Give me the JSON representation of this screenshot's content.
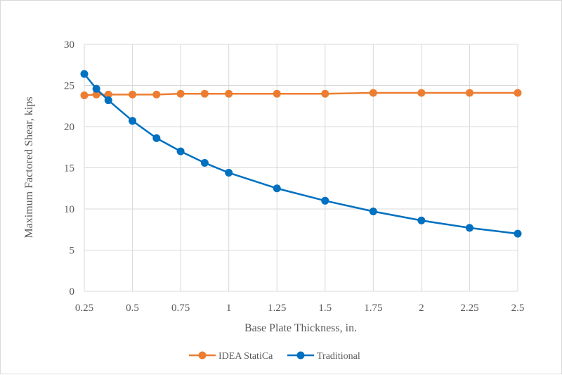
{
  "chart_data": {
    "type": "line",
    "xlabel": "Base Plate Thickness, in.",
    "ylabel": "Maximum Factored Shear, kips",
    "xlim": [
      0.25,
      2.5
    ],
    "ylim": [
      0,
      30
    ],
    "x_ticks": [
      0.25,
      0.5,
      0.75,
      1,
      1.25,
      1.5,
      1.75,
      2,
      2.25,
      2.5
    ],
    "x_tick_labels": [
      "0.25",
      "0.5",
      "0.75",
      "1",
      "1.25",
      "1.5",
      "1.75",
      "2",
      "2.25",
      "2.5"
    ],
    "y_ticks": [
      0,
      5,
      10,
      15,
      20,
      25,
      30
    ],
    "y_tick_labels": [
      "0",
      "5",
      "10",
      "15",
      "20",
      "25",
      "30"
    ],
    "grid": "vertical and horizontal",
    "legend_position": "bottom",
    "x": [
      0.25,
      0.3125,
      0.375,
      0.5,
      0.625,
      0.75,
      0.875,
      1,
      1.25,
      1.5,
      1.75,
      2,
      2.25,
      2.5
    ],
    "series": [
      {
        "name": "IDEA StatiCa",
        "color": "#ED7D31",
        "values": [
          23.8,
          23.9,
          23.9,
          23.9,
          23.9,
          24.0,
          24.0,
          24.0,
          24.0,
          24.0,
          24.1,
          24.1,
          24.1,
          24.1
        ]
      },
      {
        "name": "Traditional",
        "color": "#0070C0",
        "values": [
          26.4,
          24.6,
          23.2,
          20.7,
          18.6,
          17.0,
          15.6,
          14.4,
          12.5,
          11.0,
          9.7,
          8.6,
          7.7,
          7.0
        ]
      }
    ]
  }
}
